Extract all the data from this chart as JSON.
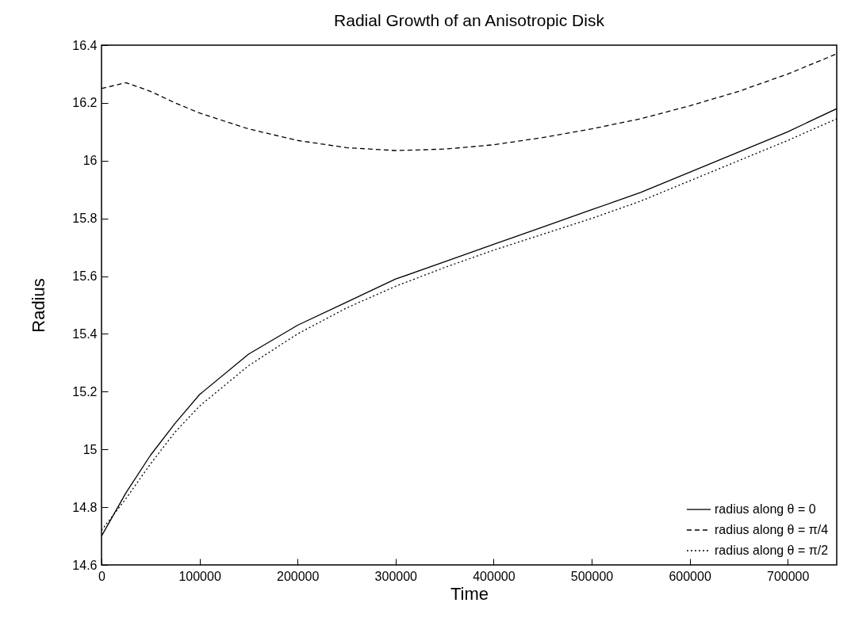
{
  "chart_data": {
    "type": "line",
    "title": "Radial Growth of an Anisotropic Disk",
    "xlabel": "Time",
    "ylabel": "Radius",
    "x": [
      0,
      25000,
      50000,
      75000,
      100000,
      150000,
      200000,
      250000,
      300000,
      350000,
      400000,
      450000,
      500000,
      550000,
      600000,
      650000,
      700000,
      750000
    ],
    "series": [
      {
        "name": "radius along θ = 0",
        "color": "#000000",
        "line_style": "solid",
        "values": [
          14.7,
          14.85,
          14.98,
          15.09,
          15.19,
          15.33,
          15.43,
          15.51,
          15.59,
          15.65,
          15.71,
          15.77,
          15.83,
          15.89,
          15.96,
          16.03,
          16.1,
          16.18
        ]
      },
      {
        "name": "radius along θ = π/4",
        "color": "#000000",
        "line_style": "dashed",
        "values": [
          16.25,
          16.27,
          16.24,
          16.2,
          16.165,
          16.11,
          16.07,
          16.045,
          16.035,
          16.04,
          16.055,
          16.08,
          16.11,
          16.145,
          16.19,
          16.24,
          16.3,
          16.37
        ]
      },
      {
        "name": "radius along θ = π/2",
        "color": "#000000",
        "line_style": "dotted",
        "values": [
          14.72,
          14.83,
          14.95,
          15.06,
          15.15,
          15.29,
          15.4,
          15.49,
          15.565,
          15.63,
          15.69,
          15.745,
          15.8,
          15.86,
          15.93,
          16.0,
          16.07,
          16.145
        ]
      }
    ],
    "xlim": [
      0,
      750000
    ],
    "xticks": [
      0,
      100000,
      200000,
      300000,
      400000,
      500000,
      600000,
      700000
    ],
    "ylim": [
      14.6,
      16.4
    ],
    "yticks": [
      14.6,
      14.8,
      15,
      15.2,
      15.4,
      15.6,
      15.8,
      16,
      16.2,
      16.4
    ],
    "grid": false,
    "legend": "bottom right"
  }
}
